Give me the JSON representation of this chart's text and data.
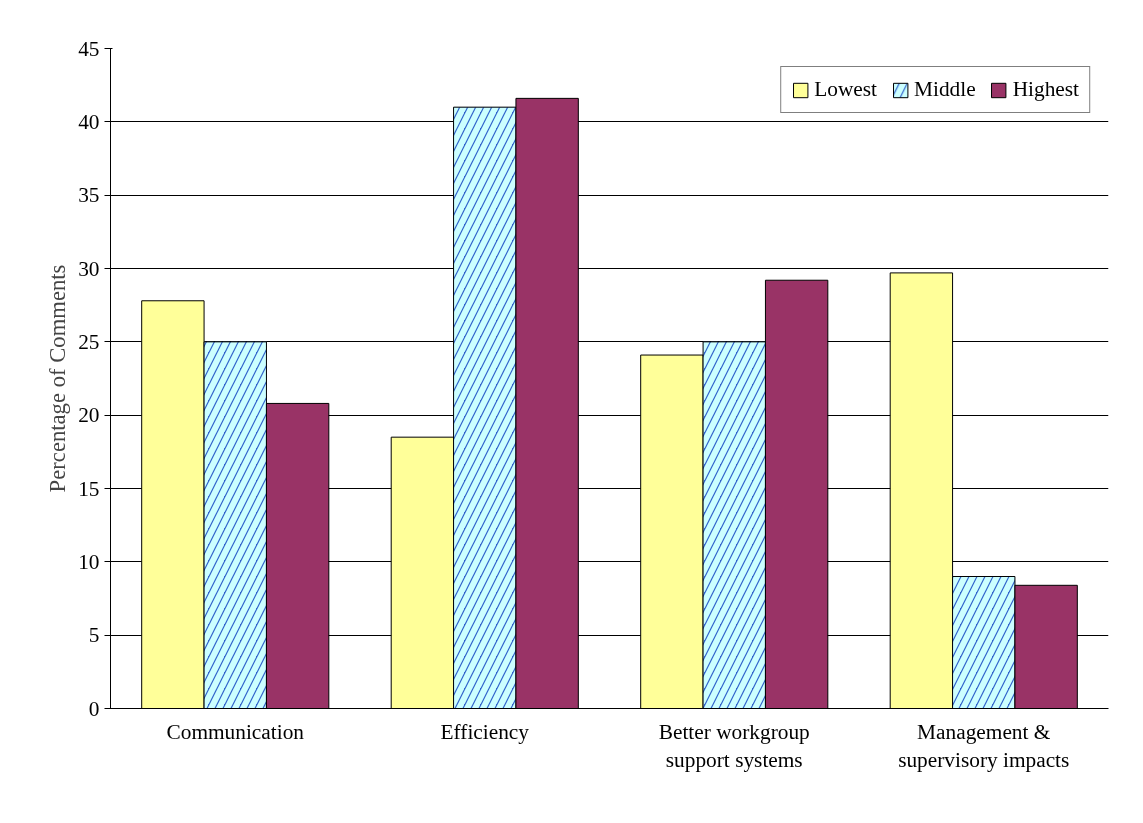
{
  "chart_data": {
    "type": "bar",
    "ylabel": "Percentage of Comments",
    "categories": [
      "Communication",
      "Efficiency",
      "Better workgroup support systems",
      "Management & supervisory impacts"
    ],
    "series": [
      {
        "name": "Lowest",
        "color": "#ffff99",
        "values": [
          27.8,
          18.5,
          24.1,
          29.7
        ]
      },
      {
        "name": "Middle",
        "color": "#3366cc",
        "values": [
          25.0,
          41.0,
          25.0,
          9.0
        ]
      },
      {
        "name": "Highest",
        "color": "#993366",
        "values": [
          20.8,
          41.6,
          29.2,
          8.4
        ]
      }
    ],
    "ylim": [
      0,
      45
    ],
    "yticks": [
      0,
      5,
      10,
      15,
      20,
      25,
      30,
      35,
      40,
      45
    ],
    "grid": "y",
    "legend": "top right"
  }
}
